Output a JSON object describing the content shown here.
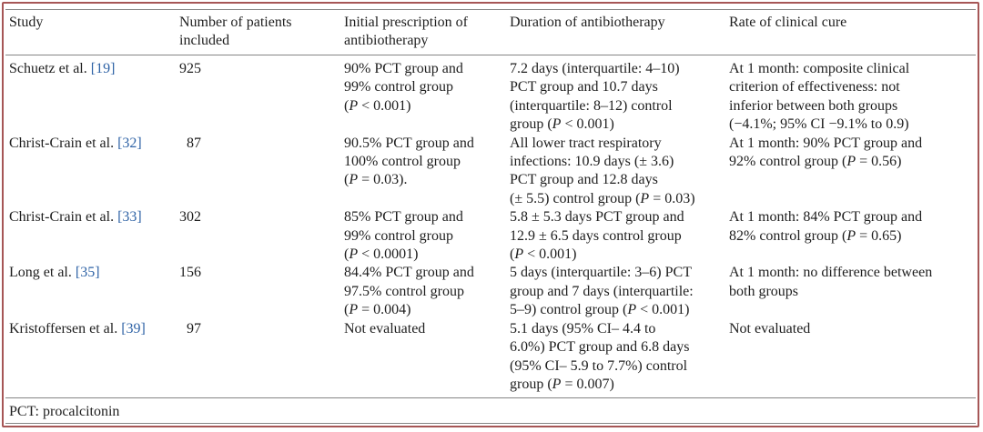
{
  "colors": {
    "text": "#1e1e1e",
    "reference_link": "#2f63a6",
    "table_rule": "#858585",
    "frame": "#a65656"
  },
  "table": {
    "headers": {
      "study": "Study",
      "patients": [
        "Number of patients",
        "included"
      ],
      "initial_prescription": [
        "Initial prescription of",
        "antibiotherapy"
      ],
      "duration": "Duration of antibiotherapy",
      "clinical_cure": "Rate of clinical cure"
    },
    "rows": [
      {
        "study": "Schuetz et al.",
        "ref": "[19]",
        "patients": "925",
        "initial_prescription": [
          "90% PCT group and",
          "99% control group",
          [
            "(",
            {
              "it": "P"
            },
            " < 0.001)"
          ]
        ],
        "duration": [
          "7.2 days (interquartile: 4–10)",
          "PCT group and 10.7 days",
          "(interquartile: 8–12) control",
          [
            "group (",
            {
              "it": "P"
            },
            " < 0.001)"
          ]
        ],
        "clinical_cure": [
          "At 1 month: composite clinical",
          "criterion of effectiveness: not",
          "inferior between both groups",
          "(−4.1%; 95% CI −9.1% to 0.9)"
        ]
      },
      {
        "study": "Christ-Crain et al.",
        "ref": "[32]",
        "patients": "87",
        "initial_prescription": [
          "90.5% PCT group and",
          "100% control group",
          [
            "(",
            {
              "it": "P"
            },
            " = 0.03)."
          ]
        ],
        "duration": [
          "All lower tract respiratory",
          "infections: 10.9 days (± 3.6)",
          "PCT group and 12.8 days",
          [
            "(± 5.5) control group (",
            {
              "it": "P"
            },
            " = 0.03)"
          ]
        ],
        "clinical_cure": [
          "At 1 month: 90% PCT group and",
          [
            "92% control group (",
            {
              "it": "P"
            },
            " = 0.56)"
          ]
        ]
      },
      {
        "study": "Christ-Crain et al.",
        "ref": "[33]",
        "patients": "302",
        "initial_prescription": [
          "85% PCT group and",
          "99% control group",
          [
            "(",
            {
              "it": "P"
            },
            " < 0.0001)"
          ]
        ],
        "duration": [
          "5.8 ± 5.3 days PCT group and",
          "12.9 ± 6.5 days control group",
          [
            "(",
            {
              "it": "P"
            },
            " < 0.001)"
          ]
        ],
        "clinical_cure": [
          "At 1 month: 84% PCT group and",
          [
            "82% control group (",
            {
              "it": "P"
            },
            " = 0.65)"
          ]
        ]
      },
      {
        "study": "Long et al.",
        "ref": "[35]",
        "patients": "156",
        "initial_prescription": [
          "84.4% PCT group and",
          "97.5% control group",
          [
            "(",
            {
              "it": "P"
            },
            " = 0.004)"
          ]
        ],
        "duration": [
          "5 days (interquartile: 3–6) PCT",
          "group and 7 days (interquartile:",
          [
            "5–9) control group (",
            {
              "it": "P"
            },
            " < 0.001)"
          ]
        ],
        "clinical_cure": [
          "At 1 month: no difference between",
          "both groups"
        ]
      },
      {
        "study": "Kristoffersen et al.",
        "ref": "[39]",
        "patients": "97",
        "initial_prescription": [
          "Not evaluated"
        ],
        "duration": [
          "5.1 days (95% CI– 4.4 to",
          "6.0%) PCT group and 6.8 days",
          "(95% CI– 5.9 to 7.7%) control",
          [
            "group (",
            {
              "it": "P"
            },
            " = 0.007)"
          ]
        ],
        "clinical_cure": [
          "Not evaluated"
        ]
      }
    ],
    "footnote": "PCT: procalcitonin"
  }
}
